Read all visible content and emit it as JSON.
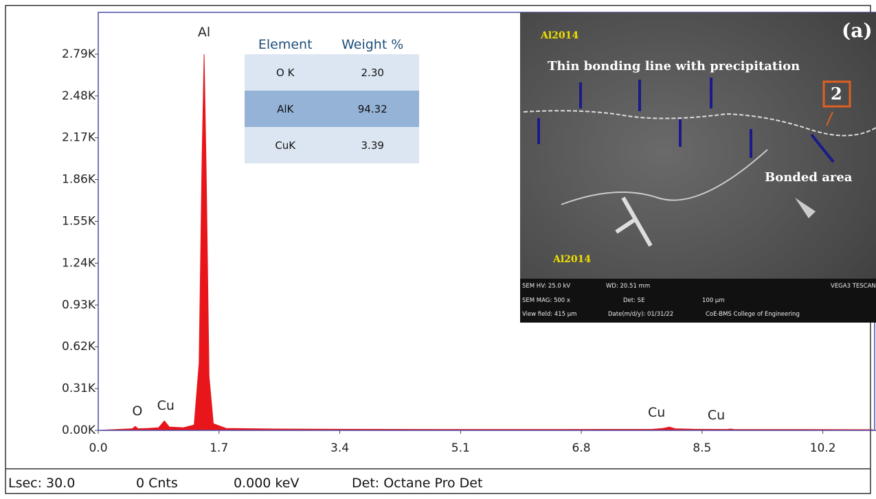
{
  "chart_data": {
    "type": "area",
    "x": [
      0.0,
      0.2,
      0.4,
      0.48,
      0.52,
      0.56,
      0.7,
      0.85,
      0.93,
      1.0,
      1.2,
      1.35,
      1.42,
      1.46,
      1.49,
      1.52,
      1.56,
      1.62,
      1.8,
      2.5,
      3.5,
      5.0,
      6.5,
      7.8,
      7.95,
      8.04,
      8.12,
      8.4,
      8.85,
      8.9,
      8.95,
      10.0,
      10.9
    ],
    "series": [
      {
        "color": "#e8161b",
        "values": [
          0,
          0.005,
          0.01,
          0.012,
          0.03,
          0.012,
          0.015,
          0.02,
          0.07,
          0.025,
          0.02,
          0.04,
          0.5,
          2.0,
          2.79,
          1.9,
          0.4,
          0.05,
          0.015,
          0.01,
          0.008,
          0.007,
          0.007,
          0.008,
          0.015,
          0.025,
          0.012,
          0.008,
          0.007,
          0.01,
          0.007,
          0.006,
          0.005
        ]
      }
    ],
    "xlim": [
      0,
      10.9
    ],
    "ylim": [
      0,
      3.1
    ],
    "xticks": [
      {
        "value": 0,
        "label": "0.0"
      },
      1.7,
      3.4,
      5.1,
      6.8,
      8.5,
      10.2
    ],
    "yticks": [
      {
        "value": 0,
        "label": "0.00K"
      },
      {
        "value": 0.31,
        "label": "0.31K"
      },
      {
        "value": 0.62,
        "label": "0.62K"
      },
      {
        "value": 0.93,
        "label": "0.93K"
      },
      {
        "value": 1.24,
        "label": "1.24K"
      },
      {
        "value": 1.55,
        "label": "1.55K"
      },
      {
        "value": 1.86,
        "label": "1.86K"
      },
      {
        "value": 2.17,
        "label": "2.17K"
      },
      {
        "value": 2.48,
        "label": "2.48K"
      },
      {
        "value": 2.79,
        "label": "2.79K"
      }
    ],
    "annotations": [
      {
        "text": "Al",
        "x": 1.49,
        "y": 2.95
      },
      {
        "text": "O",
        "x": 0.55,
        "y": 0.14
      },
      {
        "text": "Cu",
        "x": 0.95,
        "y": 0.18
      },
      {
        "text": "Cu",
        "x": 7.86,
        "y": 0.13
      },
      {
        "text": "Cu",
        "x": 8.7,
        "y": 0.11
      }
    ]
  },
  "table": {
    "columns": [
      "Element",
      "Weight %"
    ],
    "rows": [
      [
        "O K",
        "2.30"
      ],
      [
        "AlK",
        "94.32"
      ],
      [
        "CuK",
        "3.39"
      ]
    ]
  },
  "inset_image": {
    "label": "(a)",
    "material_top": "Al2014",
    "material_bottom": "Al2014",
    "line_note": "Thin bonding line with precipitation",
    "marker": "2",
    "area_note": "Bonded area",
    "footer": [
      "SEM HV: 25.0 kV",
      "WD: 20.51 mm",
      "VEGA3 TESCAN",
      "SEM MAG: 500 x",
      "Det: SE",
      "100 μm",
      "View field: 415 μm",
      "Date(m/d/y): 01/31/22",
      "CoE-BMS College of Engineering"
    ]
  },
  "status_bar": [
    "Lsec: 30.0",
    "0 Cnts",
    "0.000 keV",
    "Det: Octane Pro Det"
  ]
}
